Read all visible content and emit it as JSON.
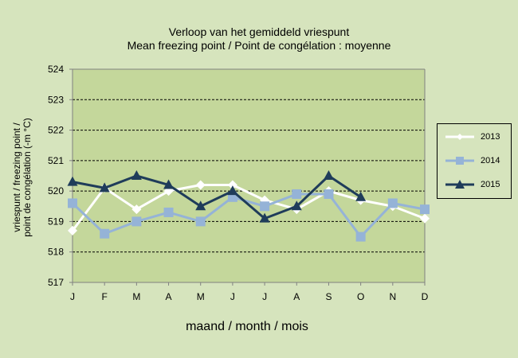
{
  "chart_data": {
    "type": "line",
    "title": "Verloop  van het gemiddeld  vriespunt",
    "subtitle": "Mean  freezing point  / Point de congélation  : moyenne",
    "xlabel": "maand  / month  / mois",
    "ylabel_line1": "vriespunt  / freezing point /",
    "ylabel_line2": "point de congélation  (-m °C)",
    "categories": [
      "J",
      "F",
      "M",
      "A",
      "M",
      "J",
      "J",
      "A",
      "S",
      "O",
      "N",
      "D"
    ],
    "ylim": [
      517,
      524
    ],
    "yticks": [
      "517",
      "518",
      "519",
      "520",
      "521",
      "522",
      "523",
      "524"
    ],
    "grid": true,
    "legend_position": "right",
    "series": [
      {
        "name": "2013",
        "color": "#ffffff",
        "marker": "diamond",
        "values": [
          518.7,
          520.1,
          519.4,
          520.0,
          520.2,
          520.2,
          519.7,
          519.4,
          520.0,
          519.7,
          519.5,
          519.1
        ]
      },
      {
        "name": "2014",
        "color": "#95b3d7",
        "marker": "square",
        "values": [
          519.6,
          518.6,
          519.0,
          519.3,
          519.0,
          519.8,
          519.5,
          519.9,
          519.9,
          518.5,
          519.6,
          519.4
        ]
      },
      {
        "name": "2015",
        "color": "#1f3c5a",
        "marker": "triangle",
        "values": [
          520.3,
          520.1,
          520.5,
          520.2,
          519.5,
          520.0,
          519.1,
          519.5,
          520.5,
          519.8,
          null,
          null
        ]
      }
    ]
  }
}
